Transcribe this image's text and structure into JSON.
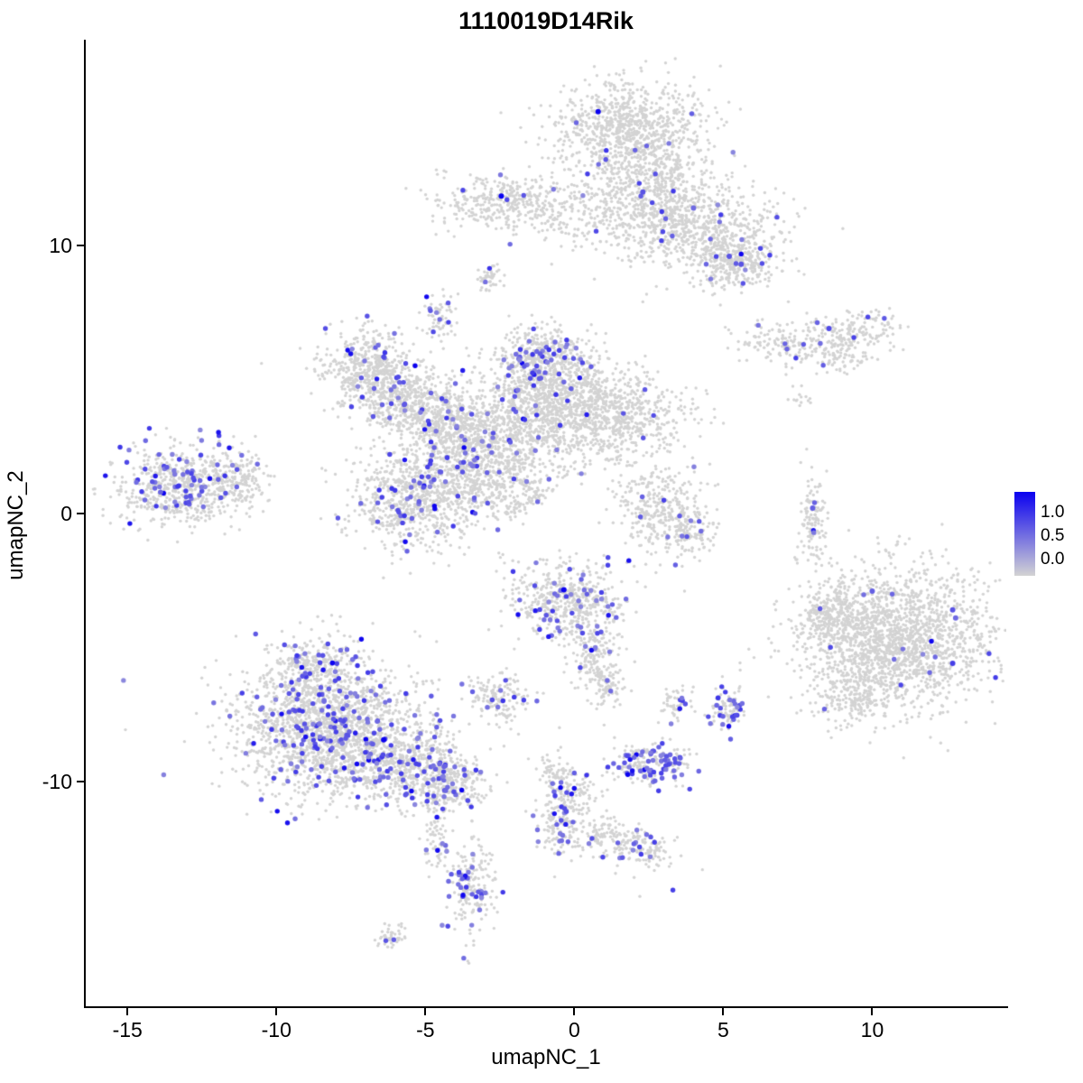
{
  "figure": {
    "title": "1110019D14Rik"
  },
  "chart_data": {
    "type": "scatter",
    "subtype": "umap-feature-plot",
    "title": "1110019D14Rik",
    "xlabel": "umapNC_1",
    "ylabel": "umapNC_2",
    "xlim": [
      -16.4,
      14.5
    ],
    "ylim": [
      -18.4,
      17.65
    ],
    "x_ticks": [
      -15,
      -10,
      -5,
      0,
      5,
      10
    ],
    "y_ticks": [
      10,
      0,
      -10
    ],
    "grid": false,
    "background_point_color": "#D3D3D3",
    "legend": {
      "position": "right",
      "labels": [
        "1.0",
        "0.5",
        "0.0"
      ],
      "values": [
        1.0,
        0.5,
        0.0
      ],
      "low_color": "#D3D3D3",
      "high_color": "#0A00F0"
    },
    "clusters": [
      {
        "cx": 1.9,
        "cy": 14.3,
        "sx": 1.3,
        "sy": 0.9,
        "n": 900,
        "f": 0.012
      },
      {
        "cx": 2.6,
        "cy": 12.2,
        "sx": 1.0,
        "sy": 0.9,
        "n": 500,
        "f": 0.012
      },
      {
        "cx": 4.2,
        "cy": 10.6,
        "sx": 1.3,
        "sy": 0.8,
        "n": 650,
        "f": 0.02
      },
      {
        "cx": 5.4,
        "cy": 9.4,
        "sx": 0.8,
        "sy": 0.55,
        "n": 300,
        "f": 0.03
      },
      {
        "cx": 0.6,
        "cy": 11.0,
        "sx": 1.1,
        "sy": 0.6,
        "n": 150,
        "f": 0.01
      },
      {
        "cx": -2.3,
        "cy": 11.6,
        "sx": 1.15,
        "sy": 0.5,
        "n": 380,
        "f": 0.02
      },
      {
        "cx": -2.85,
        "cy": 8.75,
        "sx": 0.28,
        "sy": 0.3,
        "n": 45,
        "f": 0.05
      },
      {
        "cx": -4.55,
        "cy": 7.35,
        "sx": 0.3,
        "sy": 0.45,
        "n": 70,
        "f": 0.1
      },
      {
        "cx": 7.3,
        "cy": 6.3,
        "sx": 0.9,
        "sy": 0.35,
        "n": 160,
        "f": 0.02,
        "rot": -0.15
      },
      {
        "cx": 9.3,
        "cy": 6.8,
        "sx": 0.8,
        "sy": 0.4,
        "n": 160,
        "f": 0.03
      },
      {
        "cx": 9.0,
        "cy": 5.8,
        "sx": 0.5,
        "sy": 0.3,
        "n": 60,
        "f": 0.0
      },
      {
        "cx": 7.7,
        "cy": 4.4,
        "sx": 0.25,
        "sy": 0.4,
        "n": 14,
        "f": 0.0
      },
      {
        "cx": -6.9,
        "cy": 5.4,
        "sx": 0.8,
        "sy": 0.7,
        "n": 480,
        "f": 0.06
      },
      {
        "cx": -5.8,
        "cy": 4.3,
        "sx": 0.75,
        "sy": 0.6,
        "n": 350,
        "f": 0.04
      },
      {
        "cx": -4.6,
        "cy": 3.4,
        "sx": 0.8,
        "sy": 0.7,
        "n": 350,
        "f": 0.05
      },
      {
        "cx": -3.4,
        "cy": 2.6,
        "sx": 0.9,
        "sy": 0.9,
        "n": 520,
        "f": 0.05
      },
      {
        "cx": -0.9,
        "cy": 3.9,
        "sx": 1.4,
        "sy": 1.0,
        "n": 1200,
        "f": 0.03
      },
      {
        "cx": -1.1,
        "cy": 5.8,
        "sx": 0.75,
        "sy": 0.6,
        "n": 400,
        "f": 0.1
      },
      {
        "cx": 1.7,
        "cy": 3.6,
        "sx": 1.1,
        "sy": 0.8,
        "n": 520,
        "f": 0.015
      },
      {
        "cx": -5.3,
        "cy": 0.6,
        "sx": 1.05,
        "sy": 0.95,
        "n": 750,
        "f": 0.08
      },
      {
        "cx": -2.7,
        "cy": 1.3,
        "sx": 0.9,
        "sy": 0.5,
        "n": 250,
        "f": 0.05,
        "rot": 0.5
      },
      {
        "cx": -1.6,
        "cy": 0.6,
        "sx": 0.8,
        "sy": 0.3,
        "n": 120,
        "f": 0.02,
        "rot": 0.6
      },
      {
        "cx": -13.2,
        "cy": 1.0,
        "sx": 1.1,
        "sy": 0.75,
        "n": 620,
        "f": 0.12
      },
      {
        "cx": -11.3,
        "cy": 1.3,
        "sx": 0.55,
        "sy": 0.5,
        "n": 160,
        "f": 0.04
      },
      {
        "cx": 2.9,
        "cy": 0.2,
        "sx": 0.7,
        "sy": 0.8,
        "n": 320,
        "f": 0.02
      },
      {
        "cx": 3.9,
        "cy": -0.7,
        "sx": 0.45,
        "sy": 0.45,
        "n": 110,
        "f": 0.03
      },
      {
        "cx": 8.0,
        "cy": -0.4,
        "sx": 0.22,
        "sy": 0.85,
        "n": 120,
        "f": 0.03
      },
      {
        "cx": 10.8,
        "cy": -4.7,
        "sx": 1.6,
        "sy": 1.3,
        "n": 1900,
        "f": 0.012
      },
      {
        "cx": 8.7,
        "cy": -3.9,
        "sx": 0.6,
        "sy": 0.6,
        "n": 220,
        "f": 0.02
      },
      {
        "cx": 9.4,
        "cy": -6.9,
        "sx": 0.6,
        "sy": 0.5,
        "n": 160,
        "f": 0.02
      },
      {
        "cx": -0.2,
        "cy": -3.3,
        "sx": 0.95,
        "sy": 0.75,
        "n": 520,
        "f": 0.08
      },
      {
        "cx": 0.7,
        "cy": -5.3,
        "sx": 0.4,
        "sy": 0.7,
        "n": 150,
        "f": 0.03
      },
      {
        "cx": 1.1,
        "cy": -6.4,
        "sx": 0.3,
        "sy": 0.4,
        "n": 80,
        "f": 0.02
      },
      {
        "cx": -2.6,
        "cy": -6.9,
        "sx": 0.5,
        "sy": 0.5,
        "n": 150,
        "f": 0.06
      },
      {
        "cx": -8.3,
        "cy": -8.0,
        "sx": 1.55,
        "sy": 1.2,
        "n": 1900,
        "f": 0.09
      },
      {
        "cx": -8.7,
        "cy": -5.6,
        "sx": 0.7,
        "sy": 0.5,
        "n": 220,
        "f": 0.1
      },
      {
        "cx": -5.6,
        "cy": -9.4,
        "sx": 1.0,
        "sy": 0.7,
        "n": 500,
        "f": 0.12
      },
      {
        "cx": -4.1,
        "cy": -10.1,
        "sx": 0.55,
        "sy": 0.5,
        "n": 200,
        "f": 0.12
      },
      {
        "cx": -4.6,
        "cy": -11.9,
        "sx": 0.25,
        "sy": 0.8,
        "n": 80,
        "f": 0.08
      },
      {
        "cx": -3.5,
        "cy": -14.0,
        "sx": 0.4,
        "sy": 0.8,
        "n": 200,
        "f": 0.18
      },
      {
        "cx": -6.1,
        "cy": -15.8,
        "sx": 0.3,
        "sy": 0.25,
        "n": 45,
        "f": 0.05
      },
      {
        "cx": -0.1,
        "cy": -10.6,
        "sx": 0.45,
        "sy": 0.5,
        "n": 130,
        "f": 0.1
      },
      {
        "cx": -0.6,
        "cy": -11.7,
        "sx": 0.4,
        "sy": 0.5,
        "n": 100,
        "f": 0.1
      },
      {
        "cx": 1.3,
        "cy": -12.2,
        "sx": 0.8,
        "sy": 0.45,
        "n": 180,
        "f": 0.08,
        "rot": -0.35
      },
      {
        "cx": 2.6,
        "cy": -12.7,
        "sx": 0.35,
        "sy": 0.3,
        "n": 60,
        "f": 0.05
      },
      {
        "cx": -0.7,
        "cy": -9.7,
        "sx": 0.3,
        "sy": 0.3,
        "n": 50,
        "f": 0.08
      },
      {
        "cx": 2.5,
        "cy": -9.3,
        "sx": 0.65,
        "sy": 0.4,
        "n": 210,
        "f": 0.3
      },
      {
        "cx": 3.4,
        "cy": -7.1,
        "sx": 0.28,
        "sy": 0.3,
        "n": 55,
        "f": 0.1
      },
      {
        "cx": 5.1,
        "cy": -7.3,
        "sx": 0.3,
        "sy": 0.45,
        "n": 90,
        "f": 0.35
      }
    ],
    "singles": [
      [
        -10.5,
        5.6
      ],
      [
        2.4,
        -1.9
      ],
      [
        3.7,
        -2.9
      ],
      [
        4.3,
        -13.3
      ],
      [
        2.2,
        -14.3
      ],
      [
        6.0,
        9.0
      ],
      [
        2.3,
        7.9
      ],
      [
        1.0,
        -7.9
      ],
      [
        -0.5,
        -8.0
      ],
      [
        7.8,
        2.4
      ],
      [
        7.6,
        1.9
      ]
    ],
    "highlights": [
      [
        0.8,
        15.0,
        1.0
      ],
      [
        -2.45,
        11.85,
        1.0
      ],
      [
        -0.35,
        -2.85,
        1.0
      ],
      [
        -6.4,
        -8.45,
        1.0
      ],
      [
        8.55,
        6.9,
        0.65
      ],
      [
        8.0,
        0.2,
        0.55
      ],
      [
        2.3,
        12.0,
        0.6
      ],
      [
        4.0,
        11.4,
        0.5
      ],
      [
        5.2,
        9.6,
        0.6
      ],
      [
        5.6,
        9.3,
        0.6
      ],
      [
        12.7,
        -3.6,
        0.6
      ],
      [
        12.8,
        -3.9,
        0.5
      ],
      [
        10.0,
        -2.9,
        0.55
      ],
      [
        12.7,
        -5.6,
        0.7
      ]
    ]
  }
}
